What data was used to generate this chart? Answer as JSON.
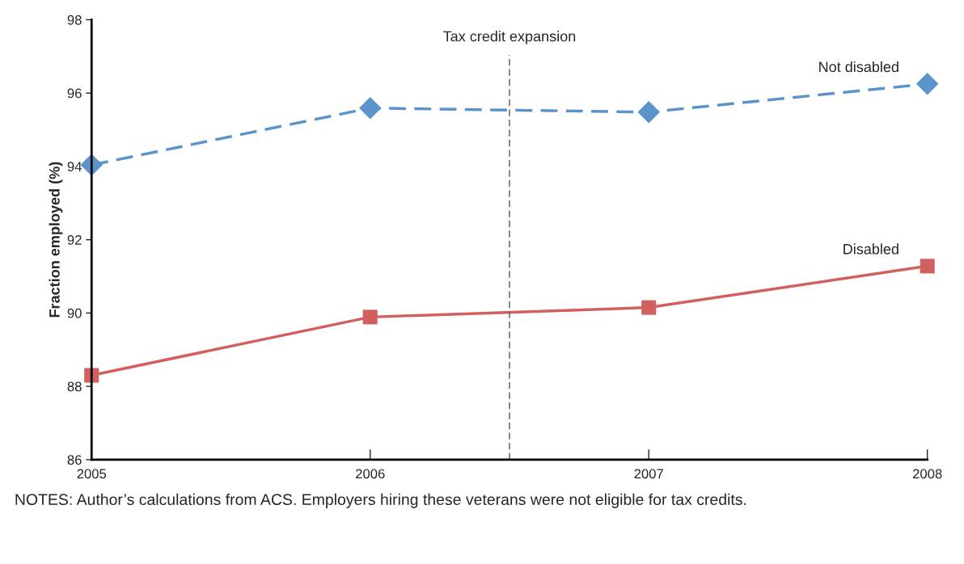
{
  "chart_data": {
    "type": "line",
    "ylabel": "Fraction employed (%)",
    "x": [
      2005,
      2006,
      2007,
      2008
    ],
    "series": [
      {
        "name": "Not disabled",
        "color": "#5b93cc",
        "values": [
          94.04,
          95.59,
          95.48,
          96.25
        ],
        "marker": "diamond",
        "line_style": "dashed"
      },
      {
        "name": "Disabled",
        "color": "#d2605f",
        "values": [
          88.3,
          89.89,
          90.15,
          91.28
        ],
        "marker": "square",
        "line_style": "solid"
      }
    ],
    "xlim": [
      2005,
      2008
    ],
    "xticks": [
      2005,
      2006,
      2007,
      2008
    ],
    "ylim": [
      86,
      98
    ],
    "yticks": [
      86,
      88,
      90,
      92,
      94,
      96,
      98
    ],
    "ref_lines": [
      {
        "axis": "x",
        "value": 2006.5,
        "label": "Tax credit expansion",
        "color": "#555555",
        "line_style": "dashed"
      }
    ],
    "annotations": [
      "NOTES: Author’s calculations from ACS. Employers hiring these veterans were not eligible for tax credits."
    ],
    "grid": false,
    "legend": false
  }
}
